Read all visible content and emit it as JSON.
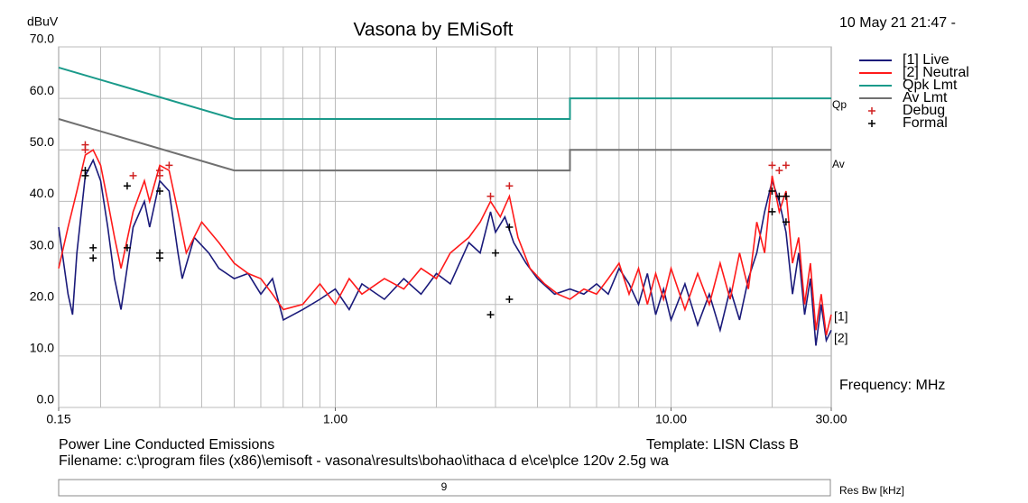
{
  "chart_data": {
    "type": "line",
    "title": "Vasona by EMiSoft",
    "y_label": "dBuV",
    "date": "10 May 21 21:47 -",
    "x_label": "Frequency: MHz",
    "log_x": true,
    "xlim": [
      0.15,
      30
    ],
    "ylim": [
      0,
      70
    ],
    "xticks": [
      0.15,
      {
        "value": 1,
        "label": "1.00"
      },
      {
        "value": 10,
        "label": "10.00"
      },
      {
        "value": 30,
        "label": "30.00"
      }
    ],
    "x_grid": [
      0.2,
      0.3,
      0.4,
      0.5,
      0.6,
      0.7,
      0.8,
      0.9,
      1,
      2,
      3,
      4,
      5,
      6,
      7,
      8,
      9,
      10,
      20
    ],
    "yticks": [
      {
        "value": 0,
        "label": "0.0"
      },
      {
        "value": 10,
        "label": "10.0"
      },
      {
        "value": 20,
        "label": "20.0"
      },
      {
        "value": 30,
        "label": "30.0"
      },
      {
        "value": 40,
        "label": "40.0"
      },
      {
        "value": 50,
        "label": "50.0"
      },
      {
        "value": 60,
        "label": "60.0"
      },
      {
        "value": 70,
        "label": "70.0"
      }
    ],
    "grid": true,
    "series": [
      {
        "name": "[1] Live",
        "color": "#1a1a7a",
        "mark": "line",
        "x": [
          0.15,
          0.16,
          0.165,
          0.17,
          0.18,
          0.19,
          0.2,
          0.21,
          0.22,
          0.23,
          0.25,
          0.27,
          0.28,
          0.3,
          0.32,
          0.34,
          0.35,
          0.38,
          0.42,
          0.45,
          0.5,
          0.55,
          0.6,
          0.65,
          0.7,
          0.8,
          0.9,
          1.0,
          1.1,
          1.2,
          1.4,
          1.6,
          1.8,
          2.0,
          2.2,
          2.5,
          2.7,
          2.9,
          3.0,
          3.2,
          3.4,
          3.7,
          4.0,
          4.5,
          5.0,
          5.5,
          6.0,
          6.5,
          7.0,
          7.5,
          8,
          8.5,
          9,
          9.5,
          10,
          11,
          12,
          13,
          14,
          15,
          16,
          17,
          18,
          19,
          20,
          21,
          22,
          23,
          24,
          25,
          26,
          27,
          28,
          29,
          30
        ],
        "values": [
          35,
          22,
          18,
          30,
          45,
          48,
          44,
          35,
          25,
          19,
          35,
          40,
          35,
          44,
          42,
          30,
          25,
          33,
          30,
          27,
          25,
          26,
          22,
          25,
          17,
          19,
          21,
          23,
          19,
          24,
          21,
          25,
          22,
          26,
          24,
          32,
          30,
          38,
          34,
          37,
          32,
          28,
          25,
          22,
          23,
          22,
          24,
          22,
          27,
          24,
          20,
          26,
          18,
          23,
          17,
          24,
          16,
          22,
          15,
          23,
          17,
          25,
          30,
          38,
          44,
          40,
          34,
          22,
          30,
          18,
          25,
          12,
          20,
          13,
          15
        ]
      },
      {
        "name": "[2] Neutral",
        "color": "#ff1a1a",
        "mark": "line",
        "x": [
          0.15,
          0.16,
          0.17,
          0.18,
          0.19,
          0.2,
          0.21,
          0.22,
          0.23,
          0.25,
          0.27,
          0.28,
          0.3,
          0.32,
          0.34,
          0.36,
          0.4,
          0.45,
          0.5,
          0.55,
          0.6,
          0.65,
          0.7,
          0.8,
          0.9,
          1.0,
          1.1,
          1.2,
          1.4,
          1.6,
          1.8,
          2.0,
          2.2,
          2.5,
          2.7,
          2.9,
          3.1,
          3.3,
          3.5,
          3.8,
          4.2,
          4.6,
          5.0,
          5.5,
          6,
          6.5,
          7,
          7.5,
          8,
          8.5,
          9,
          9.5,
          10,
          11,
          12,
          13,
          14,
          15,
          16,
          17,
          18,
          19,
          20,
          21,
          22,
          23,
          24,
          25,
          26,
          27,
          28,
          29,
          30
        ],
        "values": [
          27,
          35,
          42,
          49,
          50,
          47,
          40,
          33,
          27,
          38,
          44,
          40,
          47,
          46,
          38,
          30,
          36,
          32,
          28,
          26,
          25,
          22,
          19,
          20,
          24,
          20,
          25,
          22,
          25,
          23,
          27,
          25,
          30,
          33,
          36,
          40,
          37,
          41,
          33,
          27,
          24,
          22,
          21,
          23,
          22,
          25,
          28,
          22,
          27,
          20,
          26,
          21,
          27,
          19,
          26,
          20,
          28,
          21,
          30,
          23,
          36,
          30,
          45,
          38,
          42,
          28,
          33,
          20,
          28,
          15,
          22,
          14,
          18
        ]
      },
      {
        "name": "Qpk Lmt",
        "color": "#1a9a8a",
        "mark": "line",
        "x": [
          0.15,
          0.5,
          5,
          5,
          30
        ],
        "values": [
          66,
          56,
          56,
          60,
          60
        ]
      },
      {
        "name": "Av Lmt",
        "color": "#707070",
        "mark": "line",
        "x": [
          0.15,
          0.5,
          5,
          5,
          30
        ],
        "values": [
          56,
          46,
          46,
          50,
          50
        ]
      },
      {
        "name": "Debug",
        "color": "#d02020",
        "mark": "cross",
        "x": [
          0.18,
          0.18,
          0.25,
          0.3,
          0.3,
          0.32,
          2.9,
          3.3,
          20,
          21,
          22
        ],
        "values": [
          51,
          50,
          45,
          45,
          46,
          47,
          41,
          43,
          47,
          46,
          47
        ]
      },
      {
        "name": "Formal",
        "color": "#000000",
        "mark": "cross",
        "x": [
          0.18,
          0.18,
          0.19,
          0.19,
          0.24,
          0.24,
          0.3,
          0.3,
          0.3,
          3.0,
          2.9,
          3.3,
          3.3,
          20,
          21,
          22,
          20,
          22
        ],
        "values": [
          46,
          45,
          31,
          29,
          43,
          31,
          42,
          30,
          29,
          30,
          18,
          21,
          35,
          42,
          41,
          41,
          38,
          36
        ]
      }
    ],
    "annotations": {
      "qp": "Qp",
      "av": "Av",
      "end1": "[1]",
      "end2": "[2]"
    },
    "footer": {
      "test": "Power Line Conducted Emissions",
      "template": "Template: LISN Class B",
      "filename": "Filename: c:\\program files (x86)\\emisoft - vasona\\results\\bohao\\ithaca d e\\ce\\plce 120v 2.5g wa",
      "res_bw_value": "9",
      "res_bw_label": "Res Bw [kHz]"
    }
  }
}
